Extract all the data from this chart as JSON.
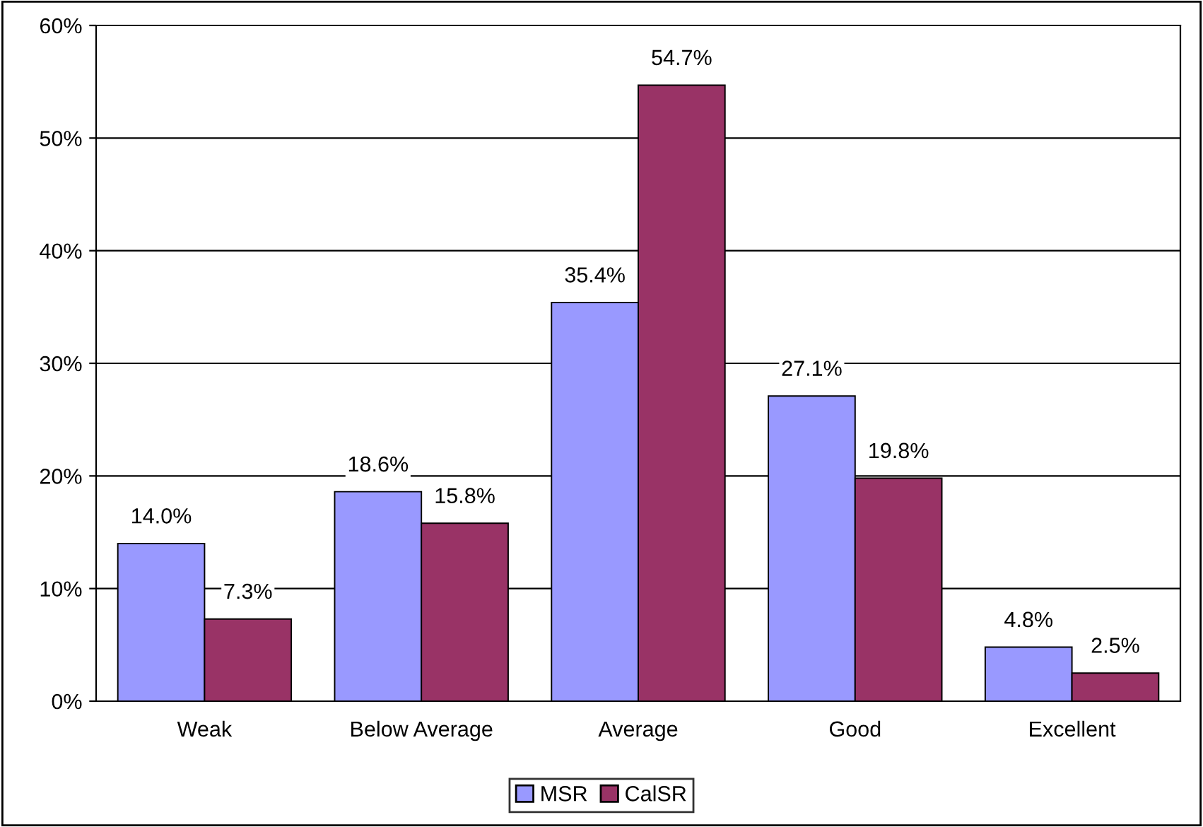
{
  "chart_data": {
    "type": "bar",
    "categories": [
      "Weak",
      "Below Average",
      "Average",
      "Good",
      "Excellent"
    ],
    "series": [
      {
        "name": "MSR",
        "color": "#9999ff",
        "values": [
          14.0,
          18.6,
          35.4,
          27.1,
          4.8
        ],
        "value_labels": [
          "14.0%",
          "18.6%",
          "35.4%",
          "27.1%",
          "4.8%"
        ]
      },
      {
        "name": "CalSR",
        "color": "#993366",
        "values": [
          7.3,
          15.8,
          54.7,
          19.8,
          2.5
        ],
        "value_labels": [
          "7.3%",
          "15.8%",
          "54.7%",
          "19.8%",
          "2.5%"
        ]
      }
    ],
    "ylim": [
      0,
      60
    ],
    "yticks": [
      {
        "value": 0,
        "label": "0%"
      },
      {
        "value": 10,
        "label": "10%"
      },
      {
        "value": 20,
        "label": "20%"
      },
      {
        "value": 30,
        "label": "30%"
      },
      {
        "value": 40,
        "label": "40%"
      },
      {
        "value": 50,
        "label": "50%"
      },
      {
        "value": 60,
        "label": "60%"
      }
    ],
    "grid": "y",
    "legend": "bottom"
  }
}
